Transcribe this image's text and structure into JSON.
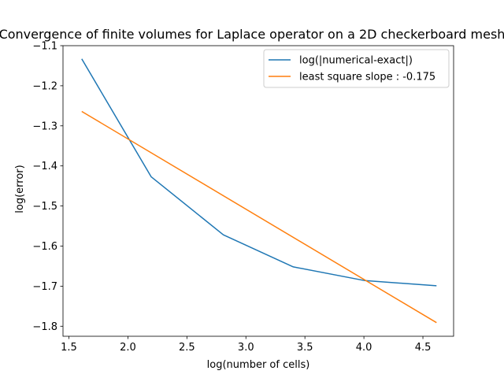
{
  "chart_data": {
    "type": "line",
    "title": "Convergence of finite volumes for Laplace operator on a 2D checkerboard mesh",
    "xlabel": "log(number of cells)",
    "ylabel": "log(error)",
    "xlim": [
      1.45,
      4.76
    ],
    "ylim": [
      -1.825,
      -1.1
    ],
    "xticks": [
      1.5,
      2.0,
      2.5,
      3.0,
      3.5,
      4.0,
      4.5
    ],
    "xtick_labels": [
      "1.5",
      "2.0",
      "2.5",
      "3.0",
      "3.5",
      "4.0",
      "4.5"
    ],
    "yticks": [
      -1.1,
      -1.2,
      -1.3,
      -1.4,
      -1.5,
      -1.6,
      -1.7,
      -1.8
    ],
    "ytick_labels": [
      "−1.1",
      "−1.2",
      "−1.3",
      "−1.4",
      "−1.5",
      "−1.6",
      "−1.7",
      "−1.8"
    ],
    "grid": false,
    "legend_position": "upper right",
    "series": [
      {
        "name": "log(|numerical-exact|)",
        "color": "#1f77b4",
        "x": [
          1.609,
          2.197,
          2.809,
          3.401,
          4.007,
          4.615
        ],
        "y": [
          -1.133,
          -1.427,
          -1.572,
          -1.652,
          -1.686,
          -1.699
        ]
      },
      {
        "name": "least square slope : -0.175",
        "color": "#ff7f0e",
        "x": [
          1.609,
          4.615
        ],
        "y": [
          -1.264,
          -1.791
        ]
      }
    ]
  }
}
